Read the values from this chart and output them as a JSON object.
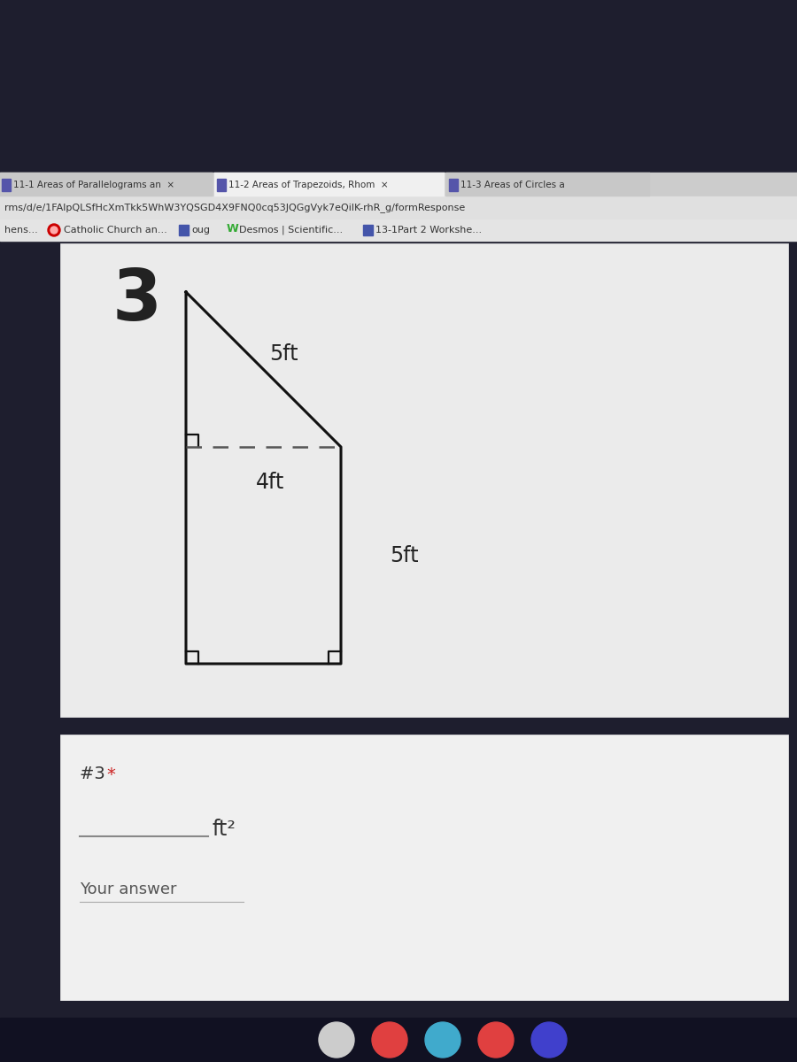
{
  "bg_dark": "#1e1e2e",
  "bg_tab_bar": "#cccccc",
  "bg_tab_active": "#f0f0f0",
  "bg_tab_inactive": "#c8c8c8",
  "bg_url": "#e0e0e0",
  "bg_bookmarks": "#e4e4e4",
  "bg_content_card": "#ebebeb",
  "bg_answer_card": "#f0f0f0",
  "shape_color": "#111111",
  "dashed_color": "#555555",
  "text_dark": "#222222",
  "text_mid": "#444444",
  "text_light": "#555555",
  "tab1_text": "11-1 Areas of Parallelograms an  ×",
  "tab2_text": "11-2 Areas of Trapezoids, Rhom  ×",
  "tab3_text": "11-3 Areas of Circles a",
  "url_text": "rms/d/e/1FAlpQLSfHcXmTkk5WhW3YQSGD4X9FNQ0cq53JQGgVyk7eQilK-rhR_g/formResponse",
  "bm1": "hens...",
  "bm2": "Catholic Church an...",
  "bm3": "oug",
  "bm4": "Desmos | Scientific...",
  "bm5": "13-1Part 2 Workshe...",
  "number_label": "3",
  "dim_hyp": "5ft",
  "dim_base": "4ft",
  "dim_height": "5ft",
  "hash3": "#3 ",
  "star": "*",
  "unit": "ft²",
  "your_answer": "Your answer",
  "icon_colors_taskbar": [
    "#cccccc",
    "#e04040",
    "#40aacc",
    "#e04040",
    "#4040cc"
  ]
}
